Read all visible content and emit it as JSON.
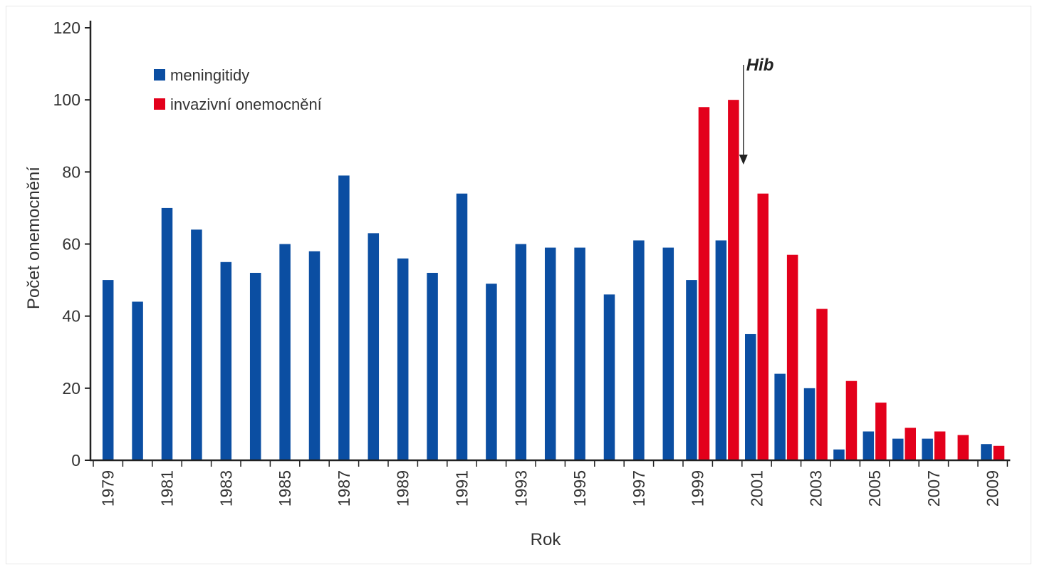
{
  "chart_data": {
    "type": "bar",
    "xlabel": "Rok",
    "ylabel": "Počet onemocnění",
    "ylim": [
      0,
      120
    ],
    "yticks": [
      0,
      20,
      40,
      60,
      80,
      100,
      120
    ],
    "categories": [
      "1979",
      "1980",
      "1981",
      "1982",
      "1983",
      "1984",
      "1985",
      "1986",
      "1987",
      "1988",
      "1989",
      "1990",
      "1991",
      "1992",
      "1993",
      "1994",
      "1995",
      "1996",
      "1997",
      "1998",
      "1999",
      "2000",
      "2001",
      "2002",
      "2003",
      "2004",
      "2005",
      "2006",
      "2007",
      "2008",
      "2009"
    ],
    "tick_labels": [
      "1979",
      "1981",
      "1983",
      "1985",
      "1987",
      "1989",
      "1991",
      "1993",
      "1995",
      "1997",
      "1999",
      "2001",
      "2003",
      "2005",
      "2007",
      "2009"
    ],
    "series": [
      {
        "name": "meningitidy",
        "color": "#0b4ea2",
        "values": [
          50,
          44,
          70,
          64,
          55,
          52,
          60,
          58,
          79,
          63,
          56,
          52,
          74,
          49,
          60,
          59,
          59,
          46,
          61,
          59,
          50,
          61,
          35,
          24,
          20,
          3,
          8,
          6,
          6,
          null,
          4.5
        ]
      },
      {
        "name": "invazivní onemocnění",
        "color": "#e3001b",
        "values": [
          null,
          null,
          null,
          null,
          null,
          null,
          null,
          null,
          null,
          null,
          null,
          null,
          null,
          null,
          null,
          null,
          null,
          null,
          null,
          null,
          98,
          100,
          74,
          57,
          42,
          22,
          16,
          9,
          8,
          7,
          4
        ]
      }
    ],
    "legend_position": "top-left",
    "annotation": {
      "text": "Hib",
      "year": "2001",
      "arrow": "down"
    },
    "grid": false
  }
}
